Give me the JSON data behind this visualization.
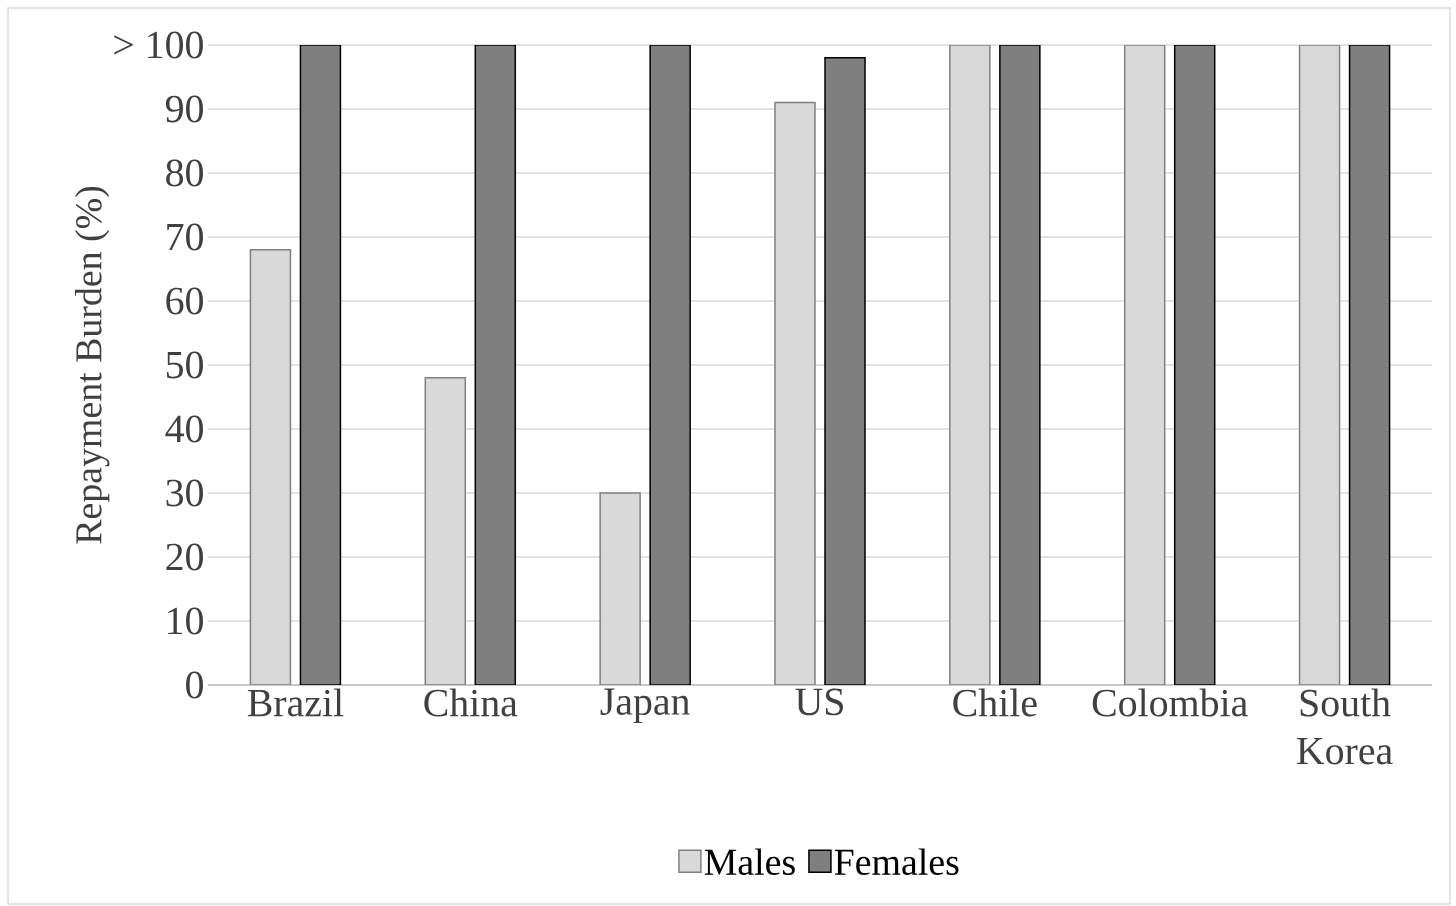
{
  "chart_data": {
    "type": "bar",
    "ylabel": "Repayment Burden (%)",
    "categories": [
      "Brazil",
      "China",
      "Japan",
      "US",
      "Chile",
      "Colombia",
      "South Korea"
    ],
    "series": [
      {
        "name": "Males",
        "color": "#d9d9d9",
        "values": [
          68,
          48,
          30,
          91,
          100,
          100,
          100
        ]
      },
      {
        "name": "Females",
        "color": "#7f7f7f",
        "values": [
          100,
          100,
          100,
          98,
          100,
          100,
          100
        ]
      }
    ],
    "ylim": [
      0,
      100
    ],
    "yticks": [
      0,
      10,
      20,
      30,
      40,
      50,
      60,
      70,
      80,
      90,
      {
        "value": 100,
        "label": "> 100"
      }
    ],
    "grid": "y",
    "legend": "bottom"
  }
}
